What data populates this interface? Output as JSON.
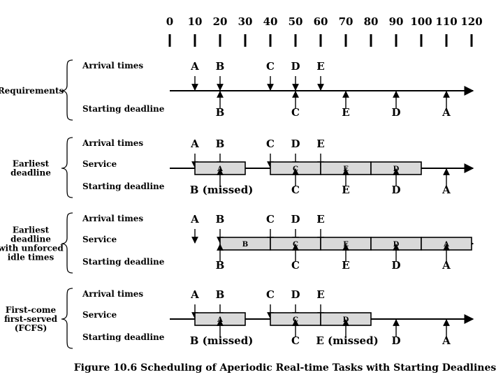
{
  "figure": {
    "caption": "Figure 10.6   Scheduling of Aperiodic Real-time Tasks with Starting Deadlines",
    "colors": {
      "ink": "#000000",
      "box_fill": "#d9d9d9",
      "background": "#ffffff"
    }
  },
  "time_axis": {
    "ticks": [
      0,
      10,
      20,
      30,
      40,
      50,
      60,
      70,
      80,
      90,
      100,
      110,
      120
    ],
    "tick_labels": [
      "0",
      "10",
      "20",
      "30",
      "40",
      "50",
      "60",
      "70",
      "80",
      "90",
      "100",
      "110",
      "120"
    ]
  },
  "row_labels": {
    "arrival": "Arrival times",
    "service": "Service",
    "deadline": "Starting deadline"
  },
  "arrivals": [
    {
      "task": "A",
      "time": 10
    },
    {
      "task": "B",
      "time": 20
    },
    {
      "task": "C",
      "time": 40
    },
    {
      "task": "D",
      "time": 50
    },
    {
      "task": "E",
      "time": 60
    }
  ],
  "deadlines": [
    {
      "task": "B",
      "time": 20
    },
    {
      "task": "C",
      "time": 50
    },
    {
      "task": "E",
      "time": 70
    },
    {
      "task": "D",
      "time": 90
    },
    {
      "task": "A",
      "time": 110
    }
  ],
  "sections": [
    {
      "id": "requirements",
      "label": [
        "Requirements"
      ],
      "has_service": false,
      "timeline_start": 0,
      "service": [],
      "deadline_labels": [
        "B",
        "C",
        "E",
        "D",
        "A"
      ]
    },
    {
      "id": "earliest-deadline",
      "label": [
        "Earliest",
        "deadline"
      ],
      "has_service": true,
      "timeline_start": 0,
      "service": [
        {
          "task": "A",
          "start": 10,
          "end": 30
        },
        {
          "task": "C",
          "start": 40,
          "end": 60
        },
        {
          "task": "E",
          "start": 60,
          "end": 80
        },
        {
          "task": "D",
          "start": 80,
          "end": 100
        }
      ],
      "deadline_labels": [
        "B (missed)",
        "C",
        "E",
        "D",
        "A"
      ]
    },
    {
      "id": "unforced-idle",
      "label": [
        "Earliest",
        "deadline",
        "with unforced",
        "idle times"
      ],
      "has_service": true,
      "timeline_start": 20,
      "service": [
        {
          "task": "B",
          "start": 20,
          "end": 40
        },
        {
          "task": "C",
          "start": 40,
          "end": 60
        },
        {
          "task": "E",
          "start": 60,
          "end": 80
        },
        {
          "task": "D",
          "start": 80,
          "end": 100
        },
        {
          "task": "A",
          "start": 100,
          "end": 120
        }
      ],
      "deadline_labels": [
        "B",
        "C",
        "E",
        "D",
        "A"
      ]
    },
    {
      "id": "fcfs",
      "label": [
        "First-come",
        "first-served",
        "(FCFS)"
      ],
      "has_service": true,
      "timeline_start": 0,
      "service": [
        {
          "task": "A",
          "start": 10,
          "end": 30
        },
        {
          "task": "C",
          "start": 40,
          "end": 60
        },
        {
          "task": "D",
          "start": 60,
          "end": 80
        }
      ],
      "deadline_labels": [
        "B (missed)",
        "C",
        "E (missed)",
        "D",
        "A"
      ]
    }
  ]
}
